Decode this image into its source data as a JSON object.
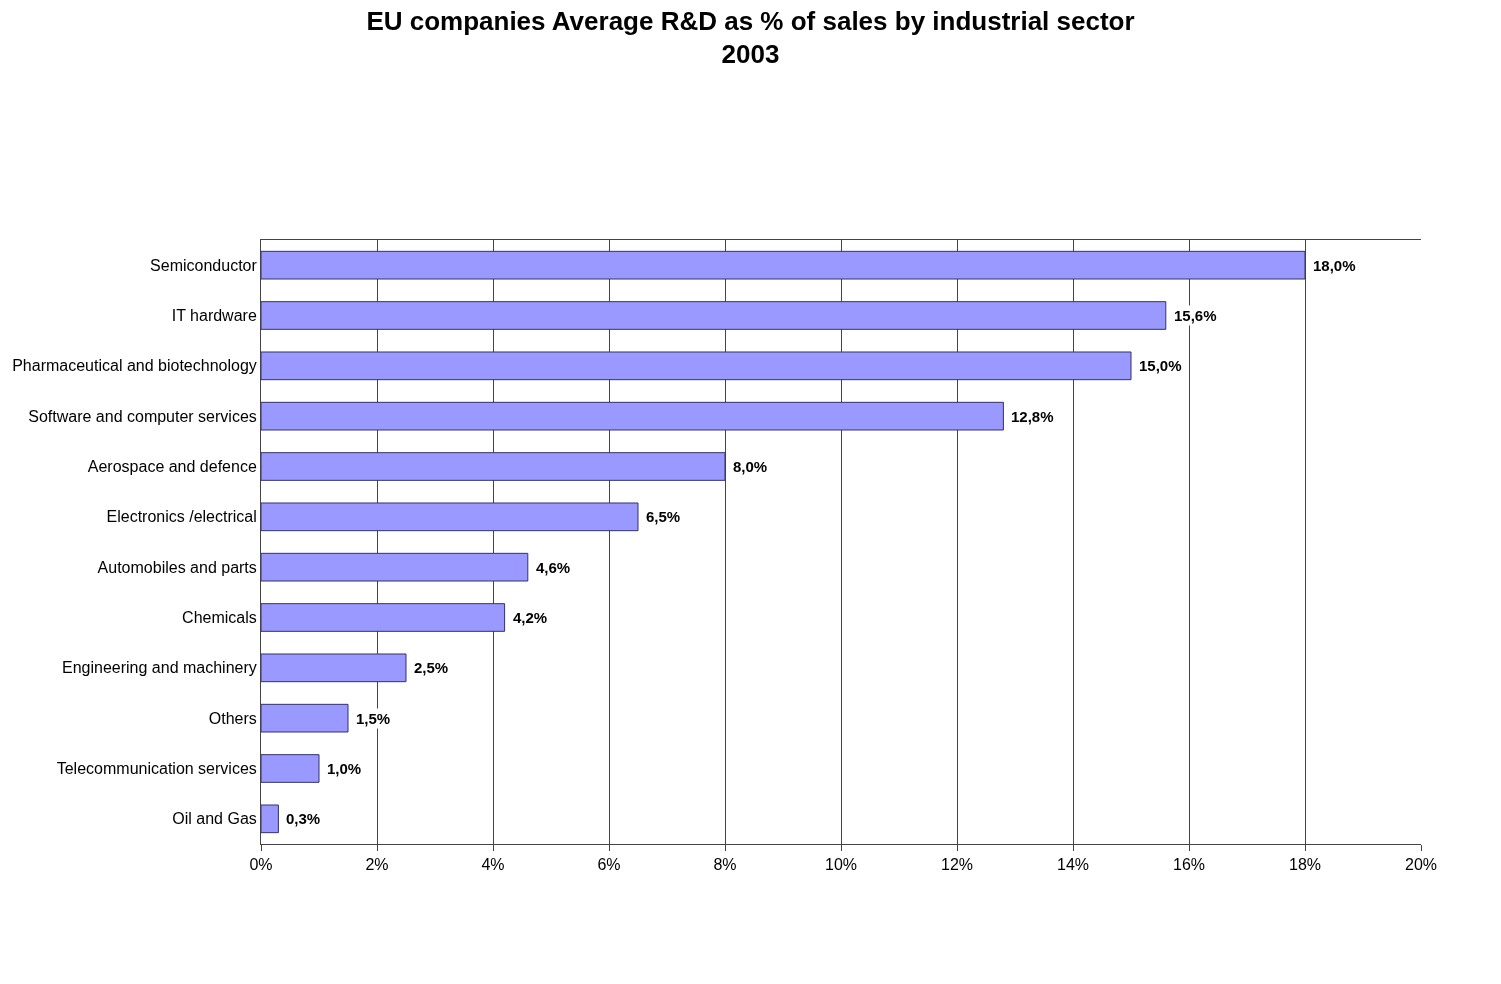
{
  "chart_data": {
    "type": "bar",
    "orientation": "horizontal",
    "title": "EU companies Average R&D as % of sales by industrial sector\n2003",
    "categories": [
      "Semiconductor",
      "IT hardware",
      "Pharmaceutical and biotechnology",
      "Software and computer services",
      "Aerospace and defence",
      "Electronics /electrical",
      "Automobiles and parts",
      "Chemicals",
      "Engineering and machinery",
      "Others",
      "Telecommunication services",
      "Oil and Gas"
    ],
    "values": [
      18.0,
      15.6,
      15.0,
      12.8,
      8.0,
      6.5,
      4.6,
      4.2,
      2.5,
      1.5,
      1.0,
      0.3
    ],
    "value_labels": [
      "18,0%",
      "15,6%",
      "15,0%",
      "12,8%",
      "8,0%",
      "6,5%",
      "4,6%",
      "4,2%",
      "2,5%",
      "1,5%",
      "1,0%",
      "0,3%"
    ],
    "color": "#9999ff",
    "xlim": [
      0,
      20
    ],
    "xticks": [
      {
        "value": 0,
        "label": "0%"
      },
      {
        "value": 2,
        "label": "2%"
      },
      {
        "value": 4,
        "label": "4%"
      },
      {
        "value": 6,
        "label": "6%"
      },
      {
        "value": 8,
        "label": "8%"
      },
      {
        "value": 10,
        "label": "10%"
      },
      {
        "value": 12,
        "label": "12%"
      },
      {
        "value": 14,
        "label": "14%"
      },
      {
        "value": 16,
        "label": "16%"
      },
      {
        "value": 18,
        "label": "18%"
      },
      {
        "value": 20,
        "label": "20%"
      }
    ],
    "grid": "x"
  }
}
